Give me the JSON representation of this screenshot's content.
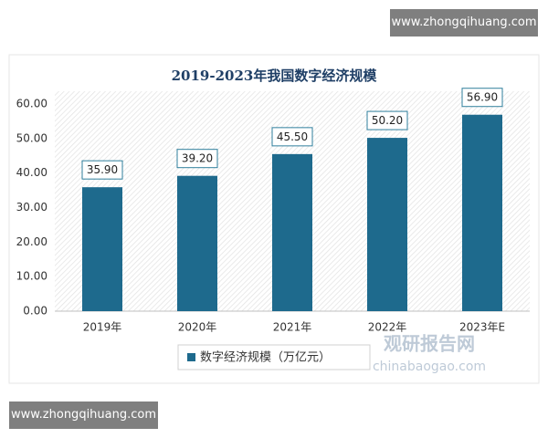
{
  "header_link": "www.zhongqihuang.com",
  "footer_link": "www.zhongqihuang.com",
  "watermark": {
    "brand": "观研报告网",
    "site": "chinabaogao.com"
  },
  "chart_data": {
    "type": "bar",
    "title": "2019-2023年我国数字经济规模",
    "categories": [
      "2019年",
      "2020年",
      "2021年",
      "2022年",
      "2023年E"
    ],
    "series": [
      {
        "name": "数字经济规模（万亿元）",
        "color": "#1e6a8d",
        "values": [
          35.9,
          39.2,
          45.5,
          50.2,
          56.9
        ],
        "value_labels": [
          "35.90",
          "39.20",
          "45.50",
          "50.20",
          "56.90"
        ]
      }
    ],
    "ylim": [
      0,
      60
    ],
    "yticks": [
      {
        "value": 0,
        "label": "0.00"
      },
      {
        "value": 10,
        "label": "10.00"
      },
      {
        "value": 20,
        "label": "20.00"
      },
      {
        "value": 30,
        "label": "30.00"
      },
      {
        "value": 40,
        "label": "40.00"
      },
      {
        "value": 50,
        "label": "50.00"
      },
      {
        "value": 60,
        "label": "60.00"
      }
    ],
    "grid": false,
    "legend": "bottom"
  }
}
